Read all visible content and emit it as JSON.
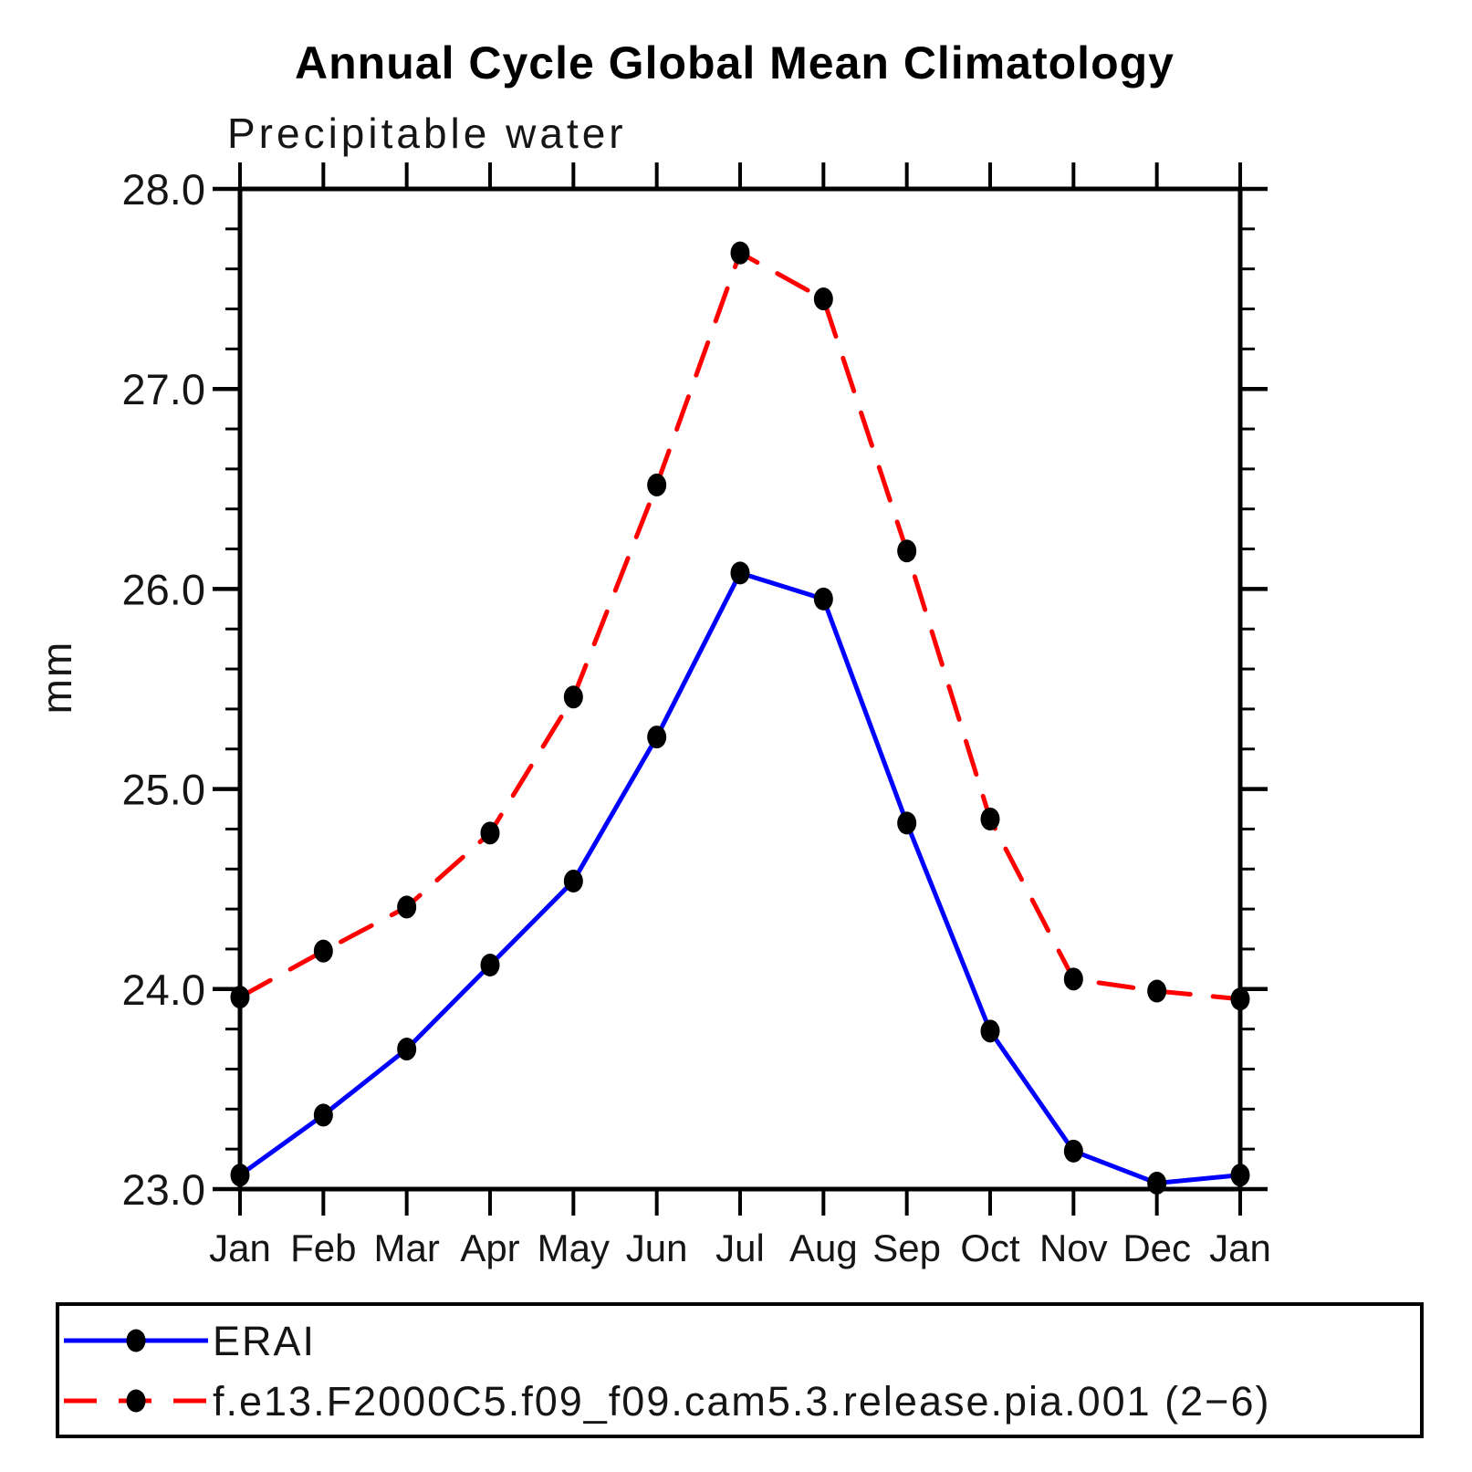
{
  "header": {
    "title": "Annual Cycle Global Mean Climatology",
    "subtitle": "Precipitable water"
  },
  "chart_data": {
    "type": "line",
    "title": "Annual Cycle Global Mean Climatology",
    "subtitle": "Precipitable water",
    "xlabel": "",
    "ylabel": "mm",
    "ylim": [
      23.0,
      28.0
    ],
    "ytick_step": 1.0,
    "yminor_step": 0.2,
    "ytick_labels": [
      "23.0",
      "24.0",
      "25.0",
      "26.0",
      "27.0",
      "28.0"
    ],
    "grid": false,
    "legend_position": "bottom",
    "categories": [
      "Jan",
      "Feb",
      "Mar",
      "Apr",
      "May",
      "Jun",
      "Jul",
      "Aug",
      "Sep",
      "Oct",
      "Nov",
      "Dec",
      "Jan"
    ],
    "series": [
      {
        "name": "ERAI",
        "color": "#0000ff",
        "line_style": "solid",
        "marker": "filled-circle",
        "marker_color": "#000000",
        "values": [
          23.07,
          23.37,
          23.7,
          24.12,
          24.54,
          25.26,
          26.08,
          25.95,
          24.83,
          23.79,
          23.19,
          23.03,
          23.07
        ]
      },
      {
        "name": "f.e13.F2000C5.f09_f09.cam5.3.release.pia.001 (2−6)",
        "color": "#ff0000",
        "line_style": "dashed",
        "marker": "filled-circle",
        "marker_color": "#000000",
        "values": [
          23.96,
          24.19,
          24.41,
          24.78,
          25.46,
          26.52,
          27.68,
          27.45,
          26.19,
          24.85,
          24.05,
          23.99,
          23.95
        ]
      }
    ]
  },
  "colors": {
    "axis": "#000000",
    "text": "#151515",
    "background": "#ffffff",
    "series_erai": "#0000ff",
    "series_model": "#ff0000",
    "marker": "#000000"
  }
}
